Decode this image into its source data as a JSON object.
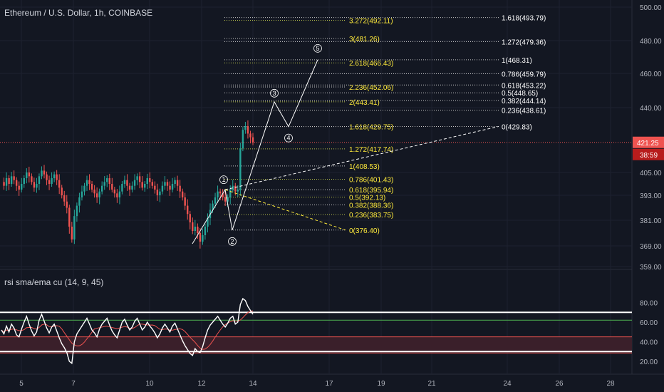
{
  "window": {
    "title": "Ethereum / U.S. Dollar, 1h, COINBASE",
    "rsi_title": "rsi sma/ema cu (14, 9, 45)"
  },
  "colors": {
    "background": "#131722",
    "grid": "#1e2230",
    "axis_text": "#b2b5be",
    "up_candle": "#26a69a",
    "down_candle": "#ef5350",
    "price_line": "#ef5350",
    "fib_yellow": "#ffeb3b",
    "fib_white": "#ffffff",
    "wave_path": "#ffffff",
    "rsi_line": "#ffffff",
    "rsi_ma": "#ef5350",
    "rsi_ema": "#4caf50",
    "rsi_band": "#3a1f2a"
  },
  "price_axis": {
    "ticks": [
      "500.00",
      "480.00",
      "460.00",
      "440.00",
      "421.25",
      "405.00",
      "393.00",
      "381.00",
      "369.00",
      "359.00"
    ],
    "current_price": "421.25",
    "countdown": "38:59"
  },
  "rsi_axis": {
    "ticks": [
      "80.00",
      "60.00",
      "40.00",
      "20.00"
    ]
  },
  "time_axis": {
    "labels": [
      "5",
      "7",
      "10",
      "12",
      "14",
      "17",
      "19",
      "21",
      "24",
      "26",
      "28"
    ]
  },
  "fib_retracement": [
    {
      "label": "0(376.40)",
      "value": 376.4
    },
    {
      "label": "0.236(383.75)",
      "value": 383.75
    },
    {
      "label": "0.382(388.36)",
      "value": 388.36
    },
    {
      "label": "0.5(392.13)",
      "value": 392.13
    },
    {
      "label": "0.618(395.94)",
      "value": 395.94
    },
    {
      "label": "0.786(401.43)",
      "value": 401.43
    },
    {
      "label": "1(408.53)",
      "value": 408.53
    },
    {
      "label": "1.272(417.74)",
      "value": 417.74
    },
    {
      "label": "1.618(429.75)",
      "value": 429.75
    },
    {
      "label": "2(443.41)",
      "value": 443.41
    },
    {
      "label": "2.236(452.06)",
      "value": 452.06
    },
    {
      "label": "2.618(466.43)",
      "value": 466.43
    },
    {
      "label": "3(481.26)",
      "value": 481.26
    },
    {
      "label": "3.272(492.11)",
      "value": 492.11
    }
  ],
  "fib_extension": [
    {
      "label": "0(429.83)",
      "value": 429.83
    },
    {
      "label": "0.236(438.61)",
      "value": 438.61
    },
    {
      "label": "0.382(444.14)",
      "value": 444.14
    },
    {
      "label": "0.5(448.65)",
      "value": 448.65
    },
    {
      "label": "0.618(453.22)",
      "value": 453.22
    },
    {
      "label": "0.786(459.79)",
      "value": 459.79
    },
    {
      "label": "1(468.31)",
      "value": 468.31
    },
    {
      "label": "1.272(479.36)",
      "value": 479.36
    },
    {
      "label": "1.618(493.79)",
      "value": 493.79
    }
  ],
  "wave_labels": [
    "1",
    "2",
    "3",
    "4",
    "5"
  ],
  "chart_data": [
    {
      "type": "candlestick",
      "title": "Ethereum / U.S. Dollar, 1h, COINBASE",
      "x_ticks": [
        "5",
        "7",
        "10",
        "12",
        "14",
        "17",
        "19",
        "21",
        "24",
        "26",
        "28"
      ],
      "y_ticks": [
        500,
        480,
        460,
        440,
        405,
        393,
        381,
        369,
        359
      ],
      "last_price": 421.25,
      "fib_retracement_levels": [
        376.4,
        383.75,
        388.36,
        392.13,
        395.94,
        401.43,
        408.53,
        417.74,
        429.75,
        443.41,
        452.06,
        466.43,
        481.26,
        492.11
      ],
      "fib_extension_levels": [
        429.83,
        438.61,
        444.14,
        448.65,
        453.22,
        459.79,
        468.31,
        479.36,
        493.79
      ],
      "price_path": [
        400,
        398,
        402,
        399,
        403,
        401,
        398,
        396,
        399,
        402,
        405,
        403,
        400,
        397,
        399,
        403,
        406,
        404,
        401,
        399,
        402,
        404,
        401,
        397,
        393,
        390,
        387,
        378,
        372,
        383,
        388,
        392,
        395,
        398,
        401,
        399,
        396,
        394,
        392,
        395,
        398,
        400,
        402,
        399,
        396,
        394,
        392,
        395,
        399,
        401,
        398,
        396,
        398,
        401,
        403,
        400,
        397,
        399,
        402,
        400,
        398,
        396,
        393,
        395,
        398,
        400,
        398,
        396,
        399,
        401,
        398,
        395,
        392,
        388,
        384,
        380,
        376,
        378,
        375,
        371,
        374,
        378,
        382,
        386,
        389,
        392,
        395,
        394,
        392,
        390,
        392,
        396,
        398,
        395,
        396,
        418,
        428,
        430,
        426,
        424,
        421.25
      ],
      "wave_points": [
        {
          "label": "1",
          "value": 395.94
        },
        {
          "label": "2",
          "value": 376.4
        },
        {
          "label": "3",
          "value": 443.41
        },
        {
          "label": "4",
          "value": 429.75
        },
        {
          "label": "5",
          "value": 468.31
        }
      ]
    },
    {
      "type": "line",
      "title": "rsi sma/ema cu (14, 9, 45)",
      "y_ticks": [
        80,
        60,
        40,
        20
      ],
      "bands": [
        70,
        62,
        45,
        30
      ],
      "rsi": [
        52,
        48,
        56,
        50,
        58,
        54,
        47,
        45,
        53,
        60,
        66,
        58,
        51,
        46,
        50,
        62,
        68,
        61,
        54,
        49,
        55,
        58,
        51,
        44,
        38,
        34,
        29,
        20,
        18,
        40,
        48,
        52,
        56,
        60,
        64,
        58,
        52,
        49,
        45,
        53,
        58,
        61,
        64,
        57,
        51,
        47,
        44,
        52,
        60,
        63,
        57,
        52,
        55,
        61,
        64,
        58,
        52,
        55,
        60,
        56,
        53,
        49,
        44,
        48,
        54,
        58,
        54,
        50,
        56,
        59,
        53,
        47,
        41,
        36,
        32,
        28,
        26,
        33,
        30,
        29,
        35,
        44,
        52,
        57,
        60,
        63,
        66,
        62,
        58,
        55,
        59,
        64,
        66,
        58,
        60,
        78,
        84,
        82,
        76,
        72,
        68
      ]
    }
  ]
}
